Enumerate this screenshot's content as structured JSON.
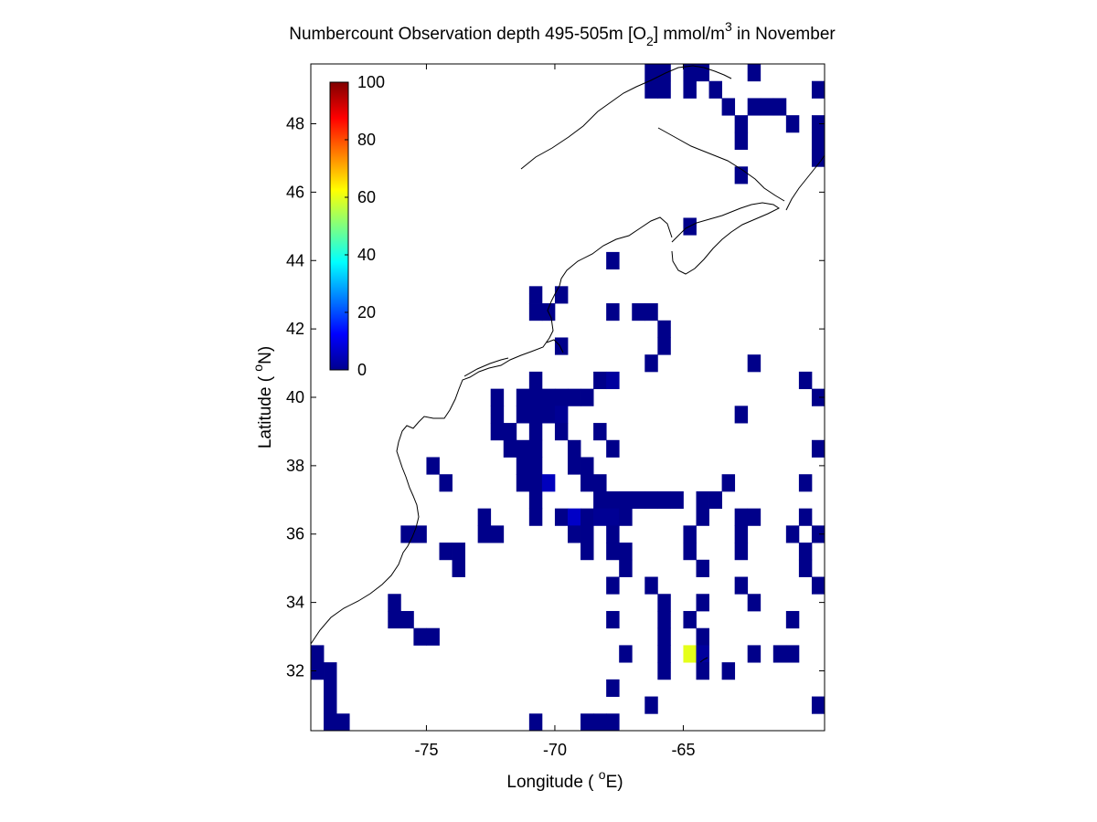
{
  "chart_data": {
    "type": "heatmap",
    "title": {
      "prefix": "Numbercount Observation depth 495-505m [O",
      "sub": "2",
      "mid": "] mmol/m",
      "sup": "3",
      "suffix": " in November"
    },
    "xlabel": {
      "prefix": "Longitude ( ",
      "sup": "o",
      "suffix": "E)"
    },
    "ylabel": {
      "prefix": "Latitude ( ",
      "sup": "o",
      "suffix": "N)"
    },
    "xlim": [
      -79.5,
      -59.5
    ],
    "ylim": [
      30.25,
      49.75
    ],
    "xticks": [
      -75,
      -70,
      -65
    ],
    "xtick_labels": [
      "-75",
      "-70",
      "-65"
    ],
    "yticks": [
      32,
      34,
      36,
      38,
      40,
      42,
      44,
      46,
      48
    ],
    "ytick_labels": [
      "32",
      "34",
      "36",
      "38",
      "40",
      "42",
      "44",
      "46",
      "48"
    ],
    "colorbar": {
      "colormap": "jet",
      "range": [
        0,
        100
      ],
      "ticks": [
        0,
        20,
        40,
        60,
        80,
        100
      ],
      "tick_labels": [
        "0",
        "20",
        "40",
        "60",
        "80",
        "100"
      ],
      "placement": "upper-left inside axes"
    },
    "grid_cell_deg": 0.5,
    "cell_value_note": "value 1 unless listed otherwise",
    "cells": [
      [
        -66.25,
        49.5
      ],
      [
        -65.75,
        49.5
      ],
      [
        -64.75,
        49.5
      ],
      [
        -64.25,
        49.5
      ],
      [
        -62.25,
        49.5
      ],
      [
        -66.25,
        49.0
      ],
      [
        -65.75,
        49.0
      ],
      [
        -64.75,
        49.0
      ],
      [
        -63.75,
        49.0
      ],
      [
        -59.75,
        49.0
      ],
      [
        -63.25,
        48.5
      ],
      [
        -62.25,
        48.5
      ],
      [
        -61.75,
        48.5
      ],
      [
        -61.25,
        48.5
      ],
      [
        -62.75,
        48.0
      ],
      [
        -60.75,
        48.0
      ],
      [
        -59.75,
        48.0
      ],
      [
        -62.75,
        47.5
      ],
      [
        -59.75,
        47.5
      ],
      [
        -59.75,
        47.0
      ],
      [
        -62.75,
        46.5
      ],
      [
        -64.75,
        45.0
      ],
      [
        -67.75,
        44.0
      ],
      [
        -70.75,
        43.0
      ],
      [
        -69.75,
        43.0
      ],
      [
        -70.75,
        42.5
      ],
      [
        -70.25,
        42.5
      ],
      [
        -67.75,
        42.5
      ],
      [
        -66.75,
        42.5
      ],
      [
        -66.25,
        42.5
      ],
      [
        -65.75,
        42.0
      ],
      [
        -69.75,
        41.5
      ],
      [
        -65.75,
        41.5
      ],
      [
        -66.25,
        41.0
      ],
      [
        -62.25,
        41.0
      ],
      [
        -70.75,
        40.5
      ],
      [
        -68.25,
        40.5
      ],
      [
        -67.75,
        40.5
      ],
      [
        -60.25,
        40.5
      ],
      [
        -72.25,
        40.0
      ],
      [
        -71.25,
        40.0
      ],
      [
        -70.75,
        40.0
      ],
      [
        -70.25,
        40.0
      ],
      [
        -69.75,
        40.0
      ],
      [
        -69.25,
        40.0
      ],
      [
        -68.75,
        40.0
      ],
      [
        -59.75,
        40.0
      ],
      [
        -72.25,
        39.5
      ],
      [
        -71.25,
        39.5
      ],
      [
        -70.75,
        39.5
      ],
      [
        -70.25,
        39.5
      ],
      [
        -69.75,
        39.5
      ],
      [
        -62.75,
        39.5
      ],
      [
        -72.25,
        39.0
      ],
      [
        -71.75,
        39.0
      ],
      [
        -70.75,
        39.0
      ],
      [
        -69.75,
        39.0
      ],
      [
        -68.25,
        39.0
      ],
      [
        -71.75,
        38.5
      ],
      [
        -71.25,
        38.5
      ],
      [
        -70.75,
        38.5
      ],
      [
        -69.25,
        38.5
      ],
      [
        -67.75,
        38.5
      ],
      [
        -59.75,
        38.5
      ],
      [
        -74.75,
        38.0
      ],
      [
        -71.25,
        38.0
      ],
      [
        -70.75,
        38.0
      ],
      [
        -69.25,
        38.0
      ],
      [
        -68.75,
        38.0
      ],
      [
        -74.25,
        37.5
      ],
      [
        -71.25,
        37.5
      ],
      [
        -70.75,
        37.5
      ],
      [
        -70.25,
        37.5
      ],
      [
        -68.75,
        37.5
      ],
      [
        -68.25,
        37.5
      ],
      [
        -63.25,
        37.5
      ],
      [
        -60.25,
        37.5
      ],
      [
        -70.75,
        37.0
      ],
      [
        -68.25,
        37.0
      ],
      [
        -67.75,
        37.0
      ],
      [
        -67.25,
        37.0
      ],
      [
        -66.75,
        37.0
      ],
      [
        -66.25,
        37.0
      ],
      [
        -65.75,
        37.0
      ],
      [
        -65.25,
        37.0
      ],
      [
        -64.25,
        37.0
      ],
      [
        -63.75,
        37.0
      ],
      [
        -72.75,
        36.5
      ],
      [
        -70.75,
        36.5
      ],
      [
        -69.75,
        36.5
      ],
      [
        -69.25,
        36.5
      ],
      [
        -68.75,
        36.5
      ],
      [
        -68.25,
        36.5
      ],
      [
        -67.75,
        36.5
      ],
      [
        -67.25,
        36.5
      ],
      [
        -64.25,
        36.5
      ],
      [
        -62.75,
        36.5
      ],
      [
        -62.25,
        36.5
      ],
      [
        -60.25,
        36.5
      ],
      [
        -75.75,
        36.0
      ],
      [
        -75.25,
        36.0
      ],
      [
        -72.75,
        36.0
      ],
      [
        -72.25,
        36.0
      ],
      [
        -69.25,
        36.0
      ],
      [
        -68.75,
        36.0
      ],
      [
        -67.75,
        36.0
      ],
      [
        -64.75,
        36.0
      ],
      [
        -62.75,
        36.0
      ],
      [
        -60.75,
        36.0
      ],
      [
        -59.75,
        36.0
      ],
      [
        -74.25,
        35.5
      ],
      [
        -73.75,
        35.5
      ],
      [
        -68.75,
        35.5
      ],
      [
        -67.75,
        35.5
      ],
      [
        -67.25,
        35.5
      ],
      [
        -64.75,
        35.5
      ],
      [
        -62.75,
        35.5
      ],
      [
        -60.25,
        35.5
      ],
      [
        -73.75,
        35.0
      ],
      [
        -67.25,
        35.0
      ],
      [
        -64.25,
        35.0
      ],
      [
        -60.25,
        35.0
      ],
      [
        -67.75,
        34.5
      ],
      [
        -66.25,
        34.5
      ],
      [
        -62.75,
        34.5
      ],
      [
        -59.75,
        34.5
      ],
      [
        -76.25,
        34.0
      ],
      [
        -65.75,
        34.0
      ],
      [
        -64.25,
        34.0
      ],
      [
        -62.25,
        34.0
      ],
      [
        -76.25,
        33.5
      ],
      [
        -75.75,
        33.5
      ],
      [
        -67.75,
        33.5
      ],
      [
        -65.75,
        33.5
      ],
      [
        -64.75,
        33.5
      ],
      [
        -60.75,
        33.5
      ],
      [
        -75.25,
        33.0
      ],
      [
        -74.75,
        33.0
      ],
      [
        -65.75,
        33.0
      ],
      [
        -64.25,
        33.0
      ],
      [
        -79.25,
        32.5
      ],
      [
        -67.25,
        32.5
      ],
      [
        -65.75,
        32.5
      ],
      [
        -64.75,
        32.5
      ],
      [
        -64.25,
        32.5
      ],
      [
        -62.25,
        32.5
      ],
      [
        -61.25,
        32.5
      ],
      [
        -60.75,
        32.5
      ],
      [
        -79.25,
        32.0
      ],
      [
        -78.75,
        32.0
      ],
      [
        -65.75,
        32.0
      ],
      [
        -64.25,
        32.0
      ],
      [
        -63.25,
        32.0
      ],
      [
        -78.75,
        31.5
      ],
      [
        -67.75,
        31.5
      ],
      [
        -78.75,
        31.0
      ],
      [
        -66.25,
        31.0
      ],
      [
        -59.75,
        31.0
      ],
      [
        -78.75,
        30.5
      ],
      [
        -78.25,
        30.5
      ],
      [
        -70.75,
        30.5
      ],
      [
        -68.75,
        30.5
      ],
      [
        -68.25,
        30.5
      ],
      [
        -67.75,
        30.5
      ]
    ],
    "cell_values": {
      "-70.25,37.5": 6,
      "-69.25,36.5": 7,
      "-68.75,36.0": 4,
      "-64.75,36.0": 3,
      "-64.75,32.5": 60,
      "-64.25,32.0": 11,
      "-70.25,40.0": 3,
      "-67.75,40.5": 3,
      "-69.75,39.5": 2,
      "-60.75,36.0": 2,
      "-68.25,36.5": 2,
      "-67.75,36.5": 2,
      "-64.25,32.5": 3
    }
  }
}
